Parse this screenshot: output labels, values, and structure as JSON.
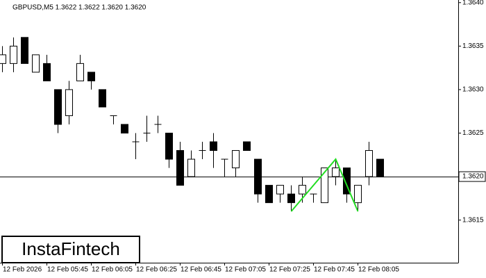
{
  "chart_data": {
    "type": "candlestick",
    "title": "GBPUSD,M5  1.3622 1.3622 1.3620 1.3620",
    "categories": [
      "12 Feb 2026",
      null,
      null,
      null,
      "12 Feb 05:45",
      null,
      null,
      null,
      "12 Feb 06:05",
      null,
      null,
      null,
      "12 Feb 06:25",
      null,
      null,
      null,
      "12 Feb 06:45",
      null,
      null,
      null,
      "12 Feb 07:05",
      null,
      null,
      null,
      "12 Feb 07:25",
      null,
      null,
      null,
      "12 Feb 07:45",
      null,
      null,
      null,
      "12 Feb 08:05",
      null,
      null
    ],
    "open": [
      1.3633,
      1.3633,
      1.3636,
      1.3632,
      1.3633,
      1.363,
      1.3627,
      1.3631,
      1.3632,
      1.363,
      1.3627,
      1.3626,
      1.3624,
      1.3625,
      1.3626,
      1.3625,
      1.3623,
      1.362,
      1.3623,
      1.3624,
      1.3622,
      1.3621,
      1.3624,
      1.3622,
      1.3619,
      1.3618,
      1.3618,
      1.3618,
      1.3618,
      1.3617,
      1.362,
      1.3621,
      1.3617,
      1.362,
      1.3622
    ],
    "high": [
      1.3635,
      1.3636,
      1.3636,
      1.3634,
      1.3634,
      1.363,
      1.3631,
      1.3634,
      1.3632,
      1.363,
      1.3627,
      1.3626,
      1.3625,
      1.3627,
      1.3627,
      1.3625,
      1.3624,
      1.3623,
      1.3624,
      1.3625,
      1.3622,
      1.3623,
      1.3624,
      1.3622,
      1.3619,
      1.3619,
      1.3619,
      1.362,
      1.3618,
      1.3621,
      1.3622,
      1.3621,
      1.3619,
      1.3624,
      1.3622
    ],
    "low": [
      1.3632,
      1.3632,
      1.3633,
      1.3632,
      1.3631,
      1.3625,
      1.3626,
      1.3631,
      1.363,
      1.3628,
      1.3626,
      1.3625,
      1.3622,
      1.3624,
      1.3625,
      1.3621,
      1.3619,
      1.362,
      1.3622,
      1.3621,
      1.362,
      1.362,
      1.3623,
      1.3617,
      1.3617,
      1.3617,
      1.3616,
      1.3617,
      1.3617,
      1.3617,
      1.3619,
      1.3617,
      1.3616,
      1.3619,
      1.362
    ],
    "close": [
      1.3634,
      1.3635,
      1.3633,
      1.3634,
      1.3631,
      1.3626,
      1.363,
      1.3633,
      1.3631,
      1.3628,
      1.3627,
      1.3625,
      1.3624,
      1.3625,
      1.3626,
      1.3622,
      1.3619,
      1.3622,
      1.3623,
      1.3623,
      1.3622,
      1.3623,
      1.3623,
      1.3618,
      1.3617,
      1.3619,
      1.3617,
      1.3619,
      1.3618,
      1.3621,
      1.3621,
      1.3618,
      1.3619,
      1.3623,
      1.362
    ],
    "up_color": "#ffffff",
    "down_color": "#000000",
    "ylim": [
      1.36101,
      1.36403
    ],
    "yticks": [
      1.3615,
      {
        "value": 1.362,
        "label": "1.3620"
      },
      1.3625,
      {
        "value": 1.363,
        "label": "1.3630"
      },
      1.3635,
      {
        "value": 1.364,
        "label": "1.3640"
      }
    ],
    "last_price": {
      "value": 1.362,
      "label": "1.3620"
    },
    "pattern": {
      "color": "#22dd22",
      "candle_index": [
        26,
        30,
        32
      ],
      "values": [
        1.3616,
        1.3622,
        1.3616
      ]
    },
    "logo": "InstaFintech"
  }
}
